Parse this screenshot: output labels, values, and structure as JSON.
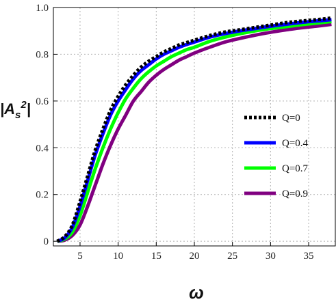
{
  "chart_data": {
    "type": "line",
    "xlabel": "ω",
    "ylabel": "|A",
    "ylabel_sub": "s",
    "ylabel_sup": "2",
    "ylabel_end": "|",
    "xlim": [
      1.5,
      38.5
    ],
    "ylim": [
      -0.02,
      1.0
    ],
    "x_ticks": [
      5,
      10,
      15,
      20,
      25,
      30,
      35
    ],
    "x_tick_labels": [
      "5",
      "10",
      "15",
      "20",
      "25",
      "30",
      "35"
    ],
    "y_ticks": [
      0,
      0.2,
      0.4,
      0.6,
      0.8,
      1.0
    ],
    "y_tick_labels": [
      "0",
      "0.2",
      "0.4",
      "0.6",
      "0.8",
      "1.0"
    ],
    "grid": true,
    "legend_position": "right",
    "x": [
      2,
      3,
      4,
      5,
      6,
      7,
      8,
      9,
      10,
      11,
      12,
      13,
      14,
      15,
      16,
      17,
      18,
      19,
      20,
      22,
      24,
      26,
      28,
      30,
      32,
      34,
      36,
      38
    ],
    "series": [
      {
        "name": "Q=0",
        "color": "#000000",
        "style": "dotted",
        "values": [
          0.0,
          0.02,
          0.07,
          0.17,
          0.28,
          0.39,
          0.48,
          0.56,
          0.62,
          0.67,
          0.71,
          0.745,
          0.77,
          0.79,
          0.81,
          0.825,
          0.84,
          0.85,
          0.86,
          0.88,
          0.895,
          0.905,
          0.915,
          0.925,
          0.935,
          0.942,
          0.948,
          0.955
        ]
      },
      {
        "name": "Q=0.4",
        "color": "#0000ff",
        "style": "solid",
        "values": [
          0.0,
          0.015,
          0.06,
          0.15,
          0.26,
          0.37,
          0.46,
          0.54,
          0.6,
          0.65,
          0.695,
          0.73,
          0.755,
          0.78,
          0.8,
          0.815,
          0.83,
          0.842,
          0.852,
          0.873,
          0.888,
          0.9,
          0.91,
          0.92,
          0.928,
          0.936,
          0.942,
          0.948
        ]
      },
      {
        "name": "Q=0.7",
        "color": "#00ff00",
        "style": "solid",
        "values": [
          0.0,
          0.01,
          0.04,
          0.11,
          0.21,
          0.31,
          0.4,
          0.48,
          0.55,
          0.61,
          0.655,
          0.695,
          0.725,
          0.75,
          0.77,
          0.79,
          0.805,
          0.82,
          0.83,
          0.855,
          0.873,
          0.888,
          0.9,
          0.91,
          0.918,
          0.926,
          0.933,
          0.94
        ]
      },
      {
        "name": "Q=0.9",
        "color": "#800080",
        "style": "solid",
        "values": [
          0.0,
          0.005,
          0.025,
          0.07,
          0.15,
          0.24,
          0.33,
          0.41,
          0.48,
          0.54,
          0.6,
          0.64,
          0.68,
          0.71,
          0.735,
          0.755,
          0.775,
          0.79,
          0.805,
          0.83,
          0.852,
          0.868,
          0.882,
          0.894,
          0.904,
          0.913,
          0.92,
          0.928
        ]
      }
    ]
  }
}
